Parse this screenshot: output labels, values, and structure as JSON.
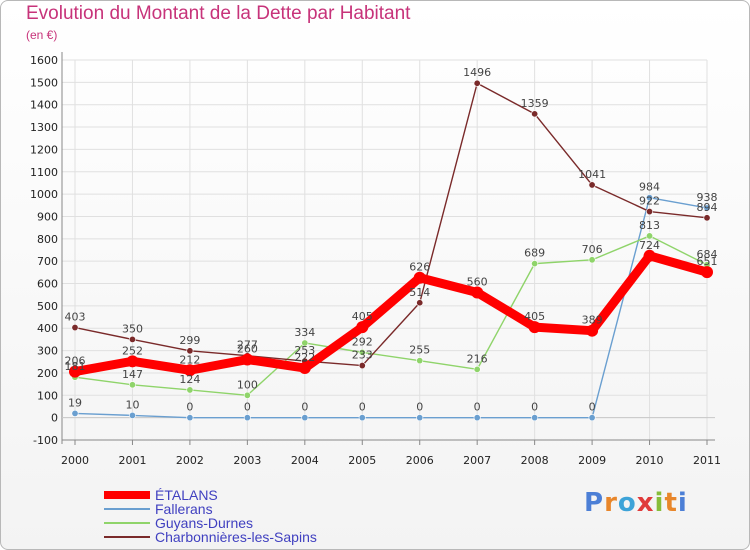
{
  "page": {
    "title": "Evolution du Montant de la Dette par Habitant",
    "subtitle": "(en €)"
  },
  "logo": {
    "text": "Proxiti",
    "colors": [
      "#4c7fd6",
      "#e8862a",
      "#3da3d8",
      "#e03a3a",
      "#86bd3a",
      "#e8862a",
      "#4c7fd6"
    ]
  },
  "chart_data": {
    "type": "line",
    "x": [
      2000,
      2001,
      2002,
      2003,
      2004,
      2005,
      2006,
      2007,
      2008,
      2009,
      2010,
      2011
    ],
    "ylim": [
      -100,
      1600
    ],
    "yticks": [
      -100,
      0,
      100,
      200,
      300,
      400,
      500,
      600,
      700,
      800,
      900,
      1000,
      1100,
      1200,
      1300,
      1400,
      1500,
      1600
    ],
    "grid": true,
    "legend": "bottom-left",
    "series": [
      {
        "name": "ÉTALANS",
        "color": "#ff0000",
        "values": [
          206,
          252,
          212,
          260,
          222,
          405,
          626,
          560,
          405,
          389,
          724,
          651
        ]
      },
      {
        "name": "Fallerans",
        "color": "#6a9fd0",
        "values": [
          19,
          10,
          0,
          0,
          0,
          0,
          0,
          0,
          0,
          0,
          984,
          938
        ]
      },
      {
        "name": "Guyans-Durnes",
        "color": "#8fd46a",
        "values": [
          181,
          147,
          124,
          100,
          334,
          292,
          255,
          216,
          689,
          706,
          813,
          684
        ]
      },
      {
        "name": "Charbonnières-les-Sapins",
        "color": "#7a2a2a",
        "values": [
          403,
          350,
          299,
          277,
          253,
          233,
          514,
          1496,
          1359,
          1041,
          922,
          894
        ]
      }
    ]
  }
}
